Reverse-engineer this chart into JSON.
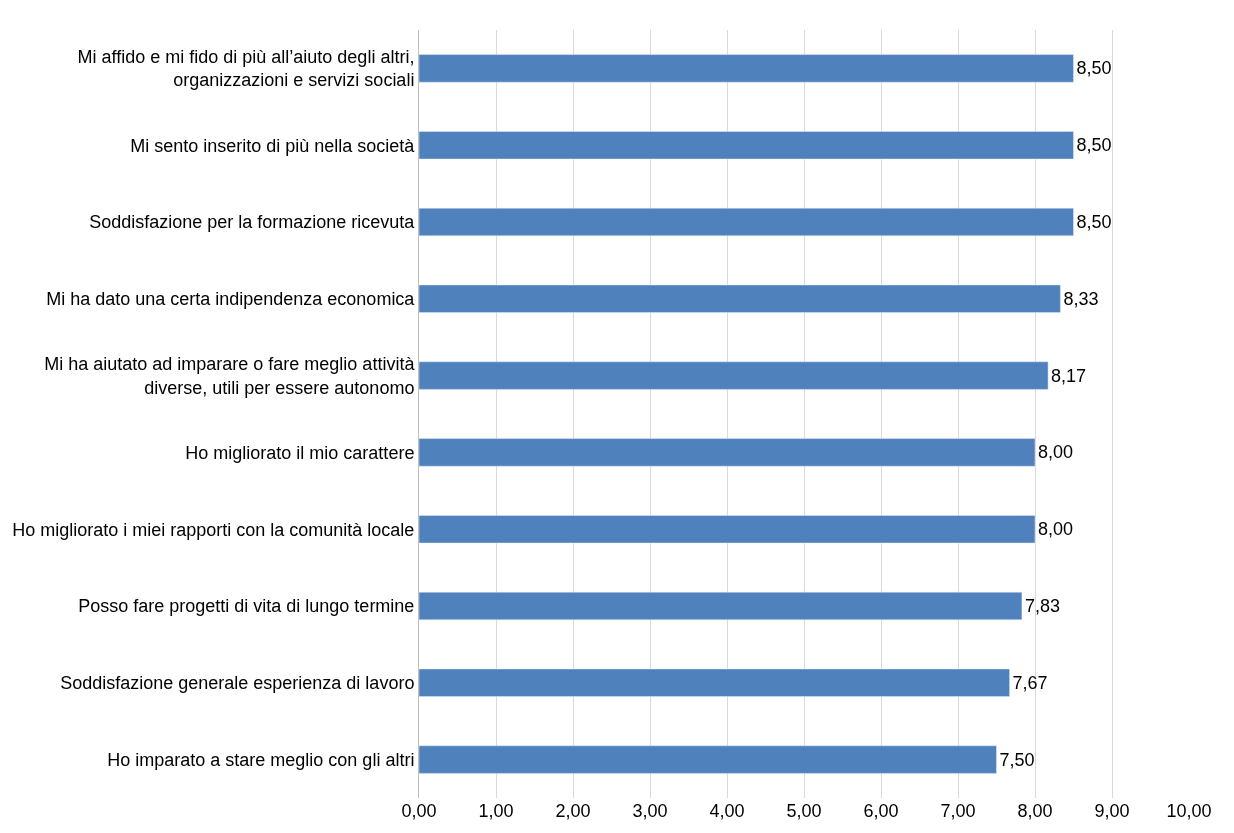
{
  "chart_data": {
    "type": "bar",
    "orientation": "horizontal",
    "categories": [
      "Mi affido e mi fido di più all’aiuto degli altri, organizzazioni e servizi sociali",
      "Mi sento inserito di più nella società",
      "Soddisfazione per la formazione ricevuta",
      "Mi ha dato una certa indipendenza economica",
      "Mi ha aiutato ad imparare o fare meglio attività diverse, utili per essere autonomo",
      "Ho migliorato il mio carattere",
      "Ho migliorato i miei rapporti con la comunità locale",
      "Posso fare progetti di vita di lungo termine",
      "Soddisfazione generale esperienza di lavoro",
      "Ho imparato a stare meglio con gli altri"
    ],
    "values": [
      8.5,
      8.5,
      8.5,
      8.33,
      8.17,
      8.0,
      8.0,
      7.83,
      7.67,
      7.5
    ],
    "value_labels": [
      "8,50",
      "8,50",
      "8,50",
      "8,33",
      "8,17",
      "8,00",
      "8,00",
      "7,83",
      "7,67",
      "7,50"
    ],
    "color": "#4f81bd",
    "xlim": [
      0,
      10
    ],
    "xticks": [
      {
        "value": 0,
        "label": "0,00"
      },
      {
        "value": 1,
        "label": "1,00"
      },
      {
        "value": 2,
        "label": "2,00"
      },
      {
        "value": 3,
        "label": "3,00"
      },
      {
        "value": 4,
        "label": "4,00"
      },
      {
        "value": 5,
        "label": "5,00"
      },
      {
        "value": 6,
        "label": "6,00"
      },
      {
        "value": 7,
        "label": "7,00"
      },
      {
        "value": 8,
        "label": "8,00"
      },
      {
        "value": 9,
        "label": "9,00"
      },
      {
        "value": 10,
        "label": "10,00"
      }
    ],
    "grid": "x",
    "legend": false
  }
}
